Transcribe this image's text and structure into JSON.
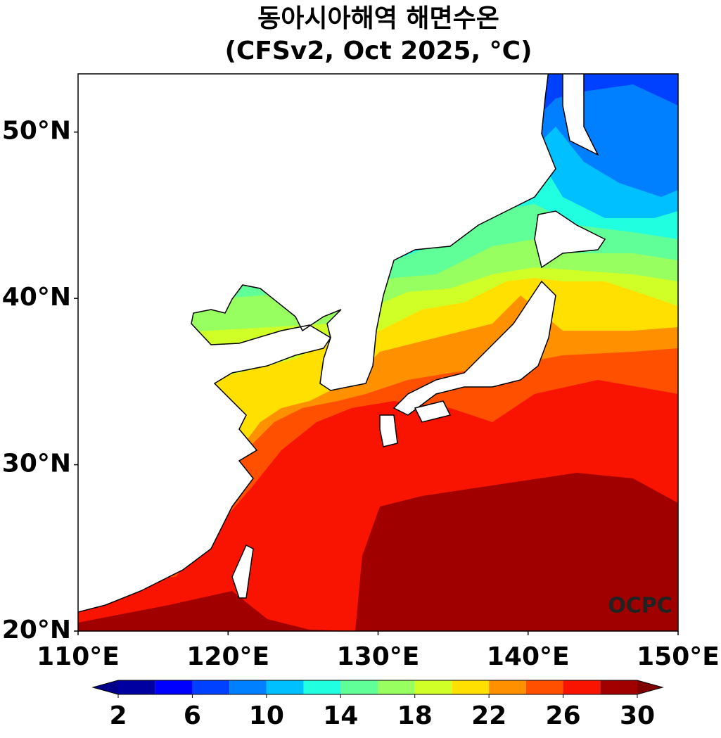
{
  "chart_data": {
    "type": "contour-map",
    "title": "동아시아해역 해면수온",
    "subtitle": "(CFSv2, Oct 2025, °C)",
    "xlim": [
      110,
      150
    ],
    "ylim": [
      20,
      53.5
    ],
    "xticks": [
      {
        "value": 110,
        "label": "110°E"
      },
      {
        "value": 120,
        "label": "120°E"
      },
      {
        "value": 130,
        "label": "130°E"
      },
      {
        "value": 140,
        "label": "140°E"
      },
      {
        "value": 150,
        "label": "150°E"
      }
    ],
    "yticks": [
      {
        "value": 20,
        "label": "20°N"
      },
      {
        "value": 30,
        "label": "30°N"
      },
      {
        "value": 40,
        "label": "40°N"
      },
      {
        "value": 50,
        "label": "50°N"
      }
    ],
    "colorbar": {
      "levels": [
        2,
        4,
        6,
        8,
        10,
        12,
        14,
        16,
        18,
        20,
        22,
        24,
        26,
        28,
        30
      ],
      "colors": [
        "#0000a0",
        "#0000ff",
        "#0040ff",
        "#0080ff",
        "#00c0ff",
        "#20ffe0",
        "#60ff98",
        "#98ff60",
        "#d0ff28",
        "#ffe000",
        "#ff9000",
        "#ff5000",
        "#f81400",
        "#a00000"
      ],
      "extend_colors": [
        "#00008b",
        "#800000"
      ],
      "ticks": [
        2,
        6,
        10,
        14,
        18,
        22,
        26,
        30
      ]
    },
    "annotation": "OCPC"
  }
}
